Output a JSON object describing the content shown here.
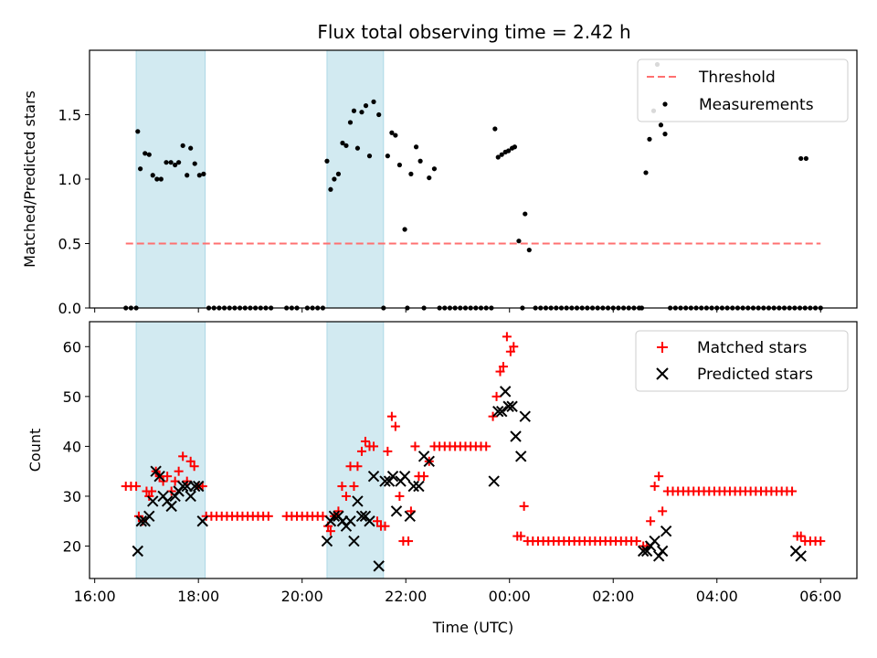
{
  "title": "Flux total observing time = 2.42 h",
  "colors": {
    "threshold": "#ff7070",
    "measure": "#000000",
    "matched": "#ff0000",
    "predicted": "#000000",
    "shade": "#add8e6"
  },
  "chart_data": [
    {
      "type": "scatter",
      "ylabel": "Matched/Predicted stars",
      "ylim": [
        0,
        2.0
      ],
      "yticks": [
        "0.0",
        "0.5",
        "1.0",
        "1.5"
      ],
      "xlim": [
        15.9,
        30.7
      ],
      "xticks": [
        "16:00",
        "18:00",
        "20:00",
        "22:00",
        "00:00",
        "02:00",
        "04:00",
        "06:00"
      ],
      "shaded_ranges_hours": [
        [
          16.8,
          18.13
        ],
        [
          20.48,
          21.57
        ]
      ],
      "legend": {
        "threshold": "Threshold",
        "measurements": "Measurements",
        "position": "top-right"
      },
      "threshold": {
        "value": 0.5,
        "x_range": [
          16.6,
          30.0
        ]
      },
      "measurements": [
        [
          16.6,
          0
        ],
        [
          16.7,
          0
        ],
        [
          16.8,
          0
        ],
        [
          16.83,
          1.37
        ],
        [
          16.88,
          1.08
        ],
        [
          16.97,
          1.2
        ],
        [
          17.05,
          1.19
        ],
        [
          17.12,
          1.03
        ],
        [
          17.2,
          1.0
        ],
        [
          17.28,
          1.0
        ],
        [
          17.38,
          1.13
        ],
        [
          17.47,
          1.13
        ],
        [
          17.55,
          1.11
        ],
        [
          17.62,
          1.13
        ],
        [
          17.7,
          1.26
        ],
        [
          17.78,
          1.03
        ],
        [
          17.85,
          1.24
        ],
        [
          17.93,
          1.12
        ],
        [
          18.02,
          1.03
        ],
        [
          18.1,
          1.04
        ],
        [
          18.2,
          0
        ],
        [
          18.3,
          0
        ],
        [
          18.4,
          0
        ],
        [
          18.5,
          0
        ],
        [
          18.6,
          0
        ],
        [
          18.7,
          0
        ],
        [
          18.8,
          0
        ],
        [
          18.9,
          0
        ],
        [
          19.0,
          0
        ],
        [
          19.1,
          0
        ],
        [
          19.2,
          0
        ],
        [
          19.3,
          0
        ],
        [
          19.4,
          0
        ],
        [
          19.7,
          0
        ],
        [
          19.8,
          0
        ],
        [
          19.9,
          0
        ],
        [
          20.1,
          0
        ],
        [
          20.2,
          0
        ],
        [
          20.3,
          0
        ],
        [
          20.4,
          0
        ],
        [
          20.48,
          1.14
        ],
        [
          20.55,
          0.92
        ],
        [
          20.62,
          1.0
        ],
        [
          20.7,
          1.04
        ],
        [
          20.78,
          1.28
        ],
        [
          20.85,
          1.26
        ],
        [
          20.93,
          1.44
        ],
        [
          21.0,
          1.53
        ],
        [
          21.07,
          1.24
        ],
        [
          21.15,
          1.52
        ],
        [
          21.23,
          1.57
        ],
        [
          21.3,
          1.18
        ],
        [
          21.38,
          1.6
        ],
        [
          21.48,
          1.5
        ],
        [
          21.57,
          0
        ],
        [
          21.65,
          1.18
        ],
        [
          21.73,
          1.36
        ],
        [
          21.8,
          1.34
        ],
        [
          21.88,
          1.11
        ],
        [
          21.98,
          0.61
        ],
        [
          22.03,
          0
        ],
        [
          22.1,
          1.04
        ],
        [
          22.2,
          1.25
        ],
        [
          22.28,
          1.14
        ],
        [
          22.35,
          0
        ],
        [
          22.45,
          1.01
        ],
        [
          22.55,
          1.08
        ],
        [
          22.65,
          0
        ],
        [
          22.75,
          0
        ],
        [
          22.85,
          0
        ],
        [
          22.95,
          0
        ],
        [
          23.05,
          0
        ],
        [
          23.15,
          0
        ],
        [
          23.25,
          0
        ],
        [
          23.35,
          0
        ],
        [
          23.45,
          0
        ],
        [
          23.55,
          0
        ],
        [
          23.65,
          0
        ],
        [
          23.72,
          1.39
        ],
        [
          23.78,
          1.17
        ],
        [
          23.85,
          1.19
        ],
        [
          23.92,
          1.21
        ],
        [
          23.98,
          1.22
        ],
        [
          24.05,
          1.24
        ],
        [
          24.1,
          1.25
        ],
        [
          24.18,
          0.52
        ],
        [
          24.25,
          0
        ],
        [
          24.3,
          0.73
        ],
        [
          24.38,
          0.45
        ],
        [
          24.5,
          0
        ],
        [
          24.6,
          0
        ],
        [
          24.7,
          0
        ],
        [
          24.8,
          0
        ],
        [
          24.9,
          0
        ],
        [
          25.0,
          0
        ],
        [
          25.1,
          0
        ],
        [
          25.2,
          0
        ],
        [
          25.3,
          0
        ],
        [
          25.4,
          0
        ],
        [
          25.5,
          0
        ],
        [
          25.6,
          0
        ],
        [
          25.7,
          0
        ],
        [
          25.8,
          0
        ],
        [
          25.9,
          0
        ],
        [
          26.0,
          0
        ],
        [
          26.1,
          0
        ],
        [
          26.2,
          0
        ],
        [
          26.3,
          0
        ],
        [
          26.4,
          0
        ],
        [
          26.5,
          0
        ],
        [
          26.55,
          0
        ],
        [
          26.63,
          1.05
        ],
        [
          26.7,
          1.31
        ],
        [
          26.78,
          1.53
        ],
        [
          26.85,
          1.89
        ],
        [
          26.92,
          1.42
        ],
        [
          27.0,
          1.35
        ],
        [
          27.1,
          0
        ],
        [
          27.2,
          0
        ],
        [
          27.3,
          0
        ],
        [
          27.4,
          0
        ],
        [
          27.5,
          0
        ],
        [
          27.6,
          0
        ],
        [
          27.7,
          0
        ],
        [
          27.8,
          0
        ],
        [
          27.9,
          0
        ],
        [
          28.0,
          0
        ],
        [
          28.1,
          0
        ],
        [
          28.2,
          0
        ],
        [
          28.3,
          0
        ],
        [
          28.4,
          0
        ],
        [
          28.5,
          0
        ],
        [
          28.6,
          0
        ],
        [
          28.7,
          0
        ],
        [
          28.8,
          0
        ],
        [
          28.9,
          0
        ],
        [
          29.0,
          0
        ],
        [
          29.1,
          0
        ],
        [
          29.2,
          0
        ],
        [
          29.3,
          0
        ],
        [
          29.4,
          0
        ],
        [
          29.5,
          0
        ],
        [
          29.6,
          0
        ],
        [
          29.7,
          0
        ],
        [
          29.8,
          0
        ],
        [
          29.9,
          0
        ],
        [
          30.0,
          0
        ],
        [
          29.62,
          1.16
        ],
        [
          29.72,
          1.16
        ]
      ]
    },
    {
      "type": "scatter",
      "ylabel": "Count",
      "xlabel": "Time (UTC)",
      "ylim": [
        13.5,
        65
      ],
      "yticks": [
        "20",
        "30",
        "40",
        "50",
        "60"
      ],
      "xlim": [
        15.9,
        30.7
      ],
      "xticks": [
        "16:00",
        "18:00",
        "20:00",
        "22:00",
        "00:00",
        "02:00",
        "04:00",
        "06:00"
      ],
      "legend": {
        "matched": "Matched stars",
        "predicted": "Predicted stars",
        "position": "top-right"
      },
      "matched": [
        [
          16.6,
          32
        ],
        [
          16.7,
          32
        ],
        [
          16.8,
          32
        ],
        [
          16.85,
          26
        ],
        [
          16.92,
          25
        ],
        [
          17.0,
          31
        ],
        [
          17.05,
          30
        ],
        [
          17.1,
          31
        ],
        [
          17.18,
          35
        ],
        [
          17.25,
          34
        ],
        [
          17.32,
          33
        ],
        [
          17.4,
          34
        ],
        [
          17.48,
          31
        ],
        [
          17.55,
          33
        ],
        [
          17.62,
          35
        ],
        [
          17.7,
          38
        ],
        [
          17.78,
          33
        ],
        [
          17.85,
          37
        ],
        [
          17.92,
          36
        ],
        [
          18.0,
          32
        ],
        [
          18.08,
          32
        ],
        [
          18.15,
          26
        ],
        [
          18.25,
          26
        ],
        [
          18.35,
          26
        ],
        [
          18.45,
          26
        ],
        [
          18.55,
          26
        ],
        [
          18.65,
          26
        ],
        [
          18.75,
          26
        ],
        [
          18.85,
          26
        ],
        [
          18.95,
          26
        ],
        [
          19.05,
          26
        ],
        [
          19.15,
          26
        ],
        [
          19.25,
          26
        ],
        [
          19.35,
          26
        ],
        [
          19.7,
          26
        ],
        [
          19.8,
          26
        ],
        [
          19.9,
          26
        ],
        [
          20.0,
          26
        ],
        [
          20.1,
          26
        ],
        [
          20.2,
          26
        ],
        [
          20.3,
          26
        ],
        [
          20.4,
          26
        ],
        [
          20.5,
          24
        ],
        [
          20.55,
          23
        ],
        [
          20.62,
          26
        ],
        [
          20.7,
          27
        ],
        [
          20.77,
          32
        ],
        [
          20.85,
          30
        ],
        [
          20.93,
          36
        ],
        [
          21.0,
          32
        ],
        [
          21.07,
          36
        ],
        [
          21.15,
          39
        ],
        [
          21.22,
          41
        ],
        [
          21.3,
          40
        ],
        [
          21.38,
          40
        ],
        [
          21.45,
          25
        ],
        [
          21.52,
          24
        ],
        [
          21.6,
          24
        ],
        [
          21.65,
          39
        ],
        [
          21.73,
          46
        ],
        [
          21.8,
          44
        ],
        [
          21.88,
          30
        ],
        [
          21.95,
          21
        ],
        [
          22.05,
          21
        ],
        [
          22.1,
          27
        ],
        [
          22.18,
          40
        ],
        [
          22.25,
          34
        ],
        [
          22.35,
          34
        ],
        [
          22.45,
          37
        ],
        [
          22.55,
          40
        ],
        [
          22.65,
          40
        ],
        [
          22.75,
          40
        ],
        [
          22.85,
          40
        ],
        [
          22.95,
          40
        ],
        [
          23.05,
          40
        ],
        [
          23.15,
          40
        ],
        [
          23.25,
          40
        ],
        [
          23.35,
          40
        ],
        [
          23.45,
          40
        ],
        [
          23.55,
          40
        ],
        [
          23.68,
          46
        ],
        [
          23.75,
          50
        ],
        [
          23.82,
          55
        ],
        [
          23.88,
          56
        ],
        [
          23.95,
          62
        ],
        [
          24.02,
          59
        ],
        [
          24.08,
          60
        ],
        [
          24.15,
          22
        ],
        [
          24.22,
          22
        ],
        [
          24.28,
          28
        ],
        [
          24.35,
          21
        ],
        [
          24.45,
          21
        ],
        [
          24.55,
          21
        ],
        [
          24.65,
          21
        ],
        [
          24.75,
          21
        ],
        [
          24.85,
          21
        ],
        [
          24.95,
          21
        ],
        [
          25.05,
          21
        ],
        [
          25.15,
          21
        ],
        [
          25.25,
          21
        ],
        [
          25.35,
          21
        ],
        [
          25.45,
          21
        ],
        [
          25.55,
          21
        ],
        [
          25.65,
          21
        ],
        [
          25.75,
          21
        ],
        [
          25.85,
          21
        ],
        [
          25.95,
          21
        ],
        [
          26.05,
          21
        ],
        [
          26.15,
          21
        ],
        [
          26.25,
          21
        ],
        [
          26.35,
          21
        ],
        [
          26.45,
          21
        ],
        [
          26.58,
          20
        ],
        [
          26.65,
          20
        ],
        [
          26.72,
          25
        ],
        [
          26.8,
          32
        ],
        [
          26.88,
          34
        ],
        [
          26.95,
          27
        ],
        [
          27.05,
          31
        ],
        [
          27.15,
          31
        ],
        [
          27.25,
          31
        ],
        [
          27.35,
          31
        ],
        [
          27.45,
          31
        ],
        [
          27.55,
          31
        ],
        [
          27.65,
          31
        ],
        [
          27.75,
          31
        ],
        [
          27.85,
          31
        ],
        [
          27.95,
          31
        ],
        [
          28.05,
          31
        ],
        [
          28.15,
          31
        ],
        [
          28.25,
          31
        ],
        [
          28.35,
          31
        ],
        [
          28.45,
          31
        ],
        [
          28.55,
          31
        ],
        [
          28.65,
          31
        ],
        [
          28.75,
          31
        ],
        [
          28.85,
          31
        ],
        [
          28.95,
          31
        ],
        [
          29.05,
          31
        ],
        [
          29.15,
          31
        ],
        [
          29.25,
          31
        ],
        [
          29.35,
          31
        ],
        [
          29.45,
          31
        ],
        [
          29.55,
          22
        ],
        [
          29.62,
          22
        ],
        [
          29.7,
          21
        ],
        [
          29.8,
          21
        ],
        [
          29.9,
          21
        ],
        [
          30.0,
          21
        ]
      ],
      "predicted": [
        [
          16.83,
          19
        ],
        [
          16.9,
          25
        ],
        [
          16.97,
          25
        ],
        [
          17.05,
          26
        ],
        [
          17.12,
          29
        ],
        [
          17.18,
          35
        ],
        [
          17.25,
          34
        ],
        [
          17.32,
          30
        ],
        [
          17.4,
          29
        ],
        [
          17.48,
          28
        ],
        [
          17.55,
          30
        ],
        [
          17.62,
          31
        ],
        [
          17.7,
          32
        ],
        [
          17.78,
          32
        ],
        [
          17.85,
          30
        ],
        [
          17.93,
          32
        ],
        [
          18.0,
          32
        ],
        [
          18.08,
          25
        ],
        [
          20.48,
          21
        ],
        [
          20.55,
          25
        ],
        [
          20.62,
          26
        ],
        [
          20.7,
          26
        ],
        [
          20.78,
          25
        ],
        [
          20.85,
          24
        ],
        [
          20.93,
          25
        ],
        [
          21.0,
          21
        ],
        [
          21.07,
          29
        ],
        [
          21.15,
          26
        ],
        [
          21.22,
          26
        ],
        [
          21.3,
          25
        ],
        [
          21.38,
          34
        ],
        [
          21.48,
          16
        ],
        [
          21.6,
          33
        ],
        [
          21.68,
          33
        ],
        [
          21.75,
          34
        ],
        [
          21.82,
          27
        ],
        [
          21.9,
          33
        ],
        [
          21.98,
          34
        ],
        [
          22.08,
          26
        ],
        [
          22.15,
          32
        ],
        [
          22.25,
          32
        ],
        [
          22.35,
          38
        ],
        [
          22.45,
          37
        ],
        [
          23.7,
          33
        ],
        [
          23.78,
          47
        ],
        [
          23.85,
          47
        ],
        [
          23.92,
          51
        ],
        [
          23.98,
          48
        ],
        [
          24.05,
          48
        ],
        [
          24.12,
          42
        ],
        [
          24.22,
          38
        ],
        [
          24.3,
          46
        ],
        [
          26.58,
          19
        ],
        [
          26.65,
          19
        ],
        [
          26.72,
          20
        ],
        [
          26.8,
          21
        ],
        [
          26.88,
          18
        ],
        [
          26.95,
          19
        ],
        [
          27.02,
          23
        ],
        [
          29.52,
          19
        ],
        [
          29.62,
          18
        ]
      ]
    }
  ]
}
